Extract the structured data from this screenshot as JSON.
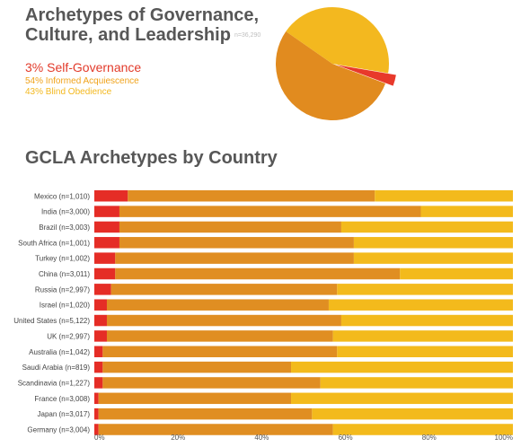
{
  "header": {
    "title_line1": "Archetypes of Governance,",
    "title_line2": "Culture, and Leadership",
    "sample_size": "n=36,290"
  },
  "legend": [
    {
      "text": "3% Self-Governance",
      "color": "#e23a2a"
    },
    {
      "text": "54% Informed Acquiescence",
      "color": "#f0a21a"
    },
    {
      "text": "43% Blind Obedience",
      "color": "#f3b81f"
    }
  ],
  "chart_data": [
    {
      "type": "pie",
      "title": "",
      "slices": [
        {
          "label": "Self-Governance",
          "value": 3,
          "color": "#e8392b"
        },
        {
          "label": "Informed Acquiescence",
          "value": 54,
          "color": "#e18b1f"
        },
        {
          "label": "Blind Obedience",
          "value": 43,
          "color": "#f3b81f"
        }
      ]
    },
    {
      "type": "bar",
      "orientation": "horizontal",
      "stacked": true,
      "title": "GCLA Archetypes by Country",
      "categories": [
        "Mexico (n=1,010)",
        "India (n=3,000)",
        "Brazil (n=3,003)",
        "South Africa (n=1,001)",
        "Turkey (n=1,002)",
        "China (n=3,011)",
        "Russia (n=2,997)",
        "Israel (n=1,020)",
        "United States (n=5,122)",
        "UK (n=2,997)",
        "Australia (n=1,042)",
        "Saudi Arabia (n=819)",
        "Scandinavia (n=1,227)",
        "France (n=3,008)",
        "Japan (n=3,017)",
        "Germany (n=3,004)"
      ],
      "series": [
        {
          "name": "Self-Governance",
          "color": "#e52d26",
          "values": [
            8,
            6,
            6,
            6,
            5,
            5,
            4,
            3,
            3,
            3,
            2,
            2,
            2,
            1,
            1,
            1
          ]
        },
        {
          "name": "Informed Acquiescence",
          "color": "#e08e22",
          "values": [
            59,
            72,
            53,
            56,
            57,
            68,
            54,
            53,
            56,
            54,
            56,
            45,
            52,
            46,
            51,
            56
          ]
        },
        {
          "name": "Blind Obedience",
          "color": "#f3ba1c",
          "values": [
            33,
            22,
            41,
            38,
            38,
            27,
            42,
            44,
            41,
            43,
            42,
            53,
            46,
            53,
            48,
            43
          ]
        }
      ],
      "xlim": [
        0,
        100
      ],
      "xticks": [
        "0%",
        "20%",
        "40%",
        "60%",
        "80%",
        "100%"
      ],
      "grid": false
    }
  ]
}
